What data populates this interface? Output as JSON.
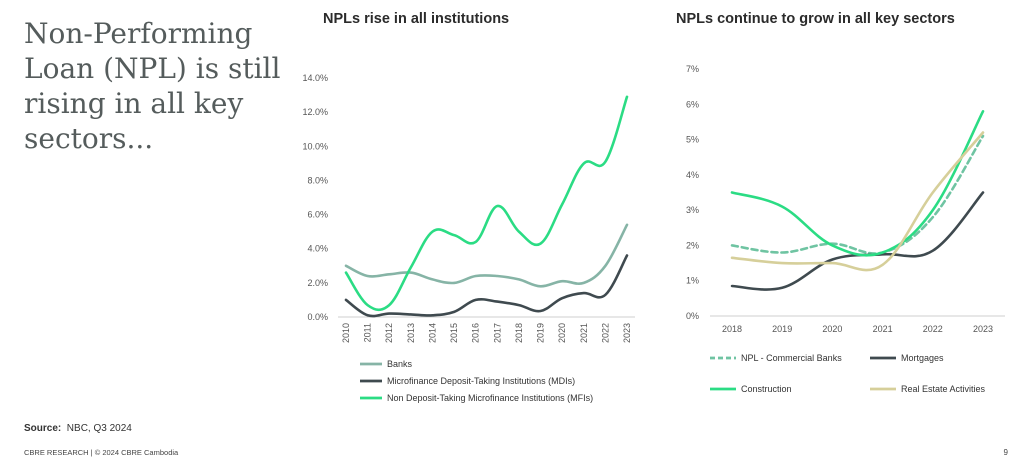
{
  "headline": "Non-Performing Loan (NPL) is still rising in all key sectors...",
  "source": {
    "label": "Source:",
    "text": "NBC, Q3 2024"
  },
  "footer": "CBRE RESEARCH | © 2024 CBRE Cambodia",
  "page_number": "9",
  "chart_data": [
    {
      "type": "line",
      "title": "NPLs rise in all institutions",
      "x": [
        "2010",
        "2011",
        "2012",
        "2013",
        "2014",
        "2015",
        "2016",
        "2017",
        "2018",
        "2019",
        "2020",
        "2021",
        "2022",
        "2023"
      ],
      "ylim": [
        0,
        14
      ],
      "yticks": [
        0,
        2,
        4,
        6,
        8,
        10,
        12,
        14
      ],
      "ytick_labels": [
        "0.0%",
        "2.0%",
        "4.0%",
        "6.0%",
        "8.0%",
        "10.0%",
        "12.0%",
        "14.0%"
      ],
      "legend_position": "bottom",
      "series": [
        {
          "name": "Banks",
          "color": "#86b4a6",
          "dashed": false,
          "values": [
            3.0,
            2.4,
            2.5,
            2.6,
            2.2,
            2.0,
            2.4,
            2.4,
            2.2,
            1.8,
            2.1,
            2.0,
            3.0,
            5.4
          ]
        },
        {
          "name": "Microfinance Deposit-Taking Institutions (MDIs)",
          "color": "#3f4a4f",
          "dashed": false,
          "values": [
            1.0,
            0.1,
            0.2,
            0.15,
            0.1,
            0.3,
            1.0,
            0.9,
            0.7,
            0.35,
            1.1,
            1.4,
            1.3,
            3.6
          ]
        },
        {
          "name": "Non Deposit-Taking Microfinance Institutions (MFIs)",
          "color": "#2bdc84",
          "dashed": false,
          "values": [
            2.6,
            0.7,
            0.7,
            2.9,
            5.0,
            4.8,
            4.4,
            6.5,
            5.0,
            4.3,
            6.6,
            9.0,
            9.1,
            12.9
          ]
        }
      ]
    },
    {
      "type": "line",
      "title": "NPLs continue to grow in all key sectors",
      "x": [
        "2018",
        "2019",
        "2020",
        "2021",
        "2022",
        "2023"
      ],
      "ylim": [
        0,
        7
      ],
      "yticks": [
        0,
        1,
        2,
        3,
        4,
        5,
        6,
        7
      ],
      "ytick_labels": [
        "0%",
        "1%",
        "2%",
        "3%",
        "4%",
        "5%",
        "6%",
        "7%"
      ],
      "legend_position": "bottom",
      "series": [
        {
          "name": "NPL - Commercial Banks",
          "color": "#6fc4a2",
          "dashed": true,
          "values": [
            2.0,
            1.8,
            2.05,
            1.8,
            2.8,
            5.1
          ]
        },
        {
          "name": "Mortgages",
          "color": "#3f4a4f",
          "dashed": false,
          "values": [
            0.85,
            0.8,
            1.6,
            1.75,
            1.85,
            3.5
          ]
        },
        {
          "name": "Construction",
          "color": "#2bdc84",
          "dashed": false,
          "values": [
            3.5,
            3.1,
            2.0,
            1.8,
            3.0,
            5.8
          ]
        },
        {
          "name": "Real Estate Activities",
          "color": "#d6cf9a",
          "dashed": false,
          "values": [
            1.65,
            1.5,
            1.5,
            1.45,
            3.5,
            5.2
          ]
        }
      ]
    }
  ]
}
